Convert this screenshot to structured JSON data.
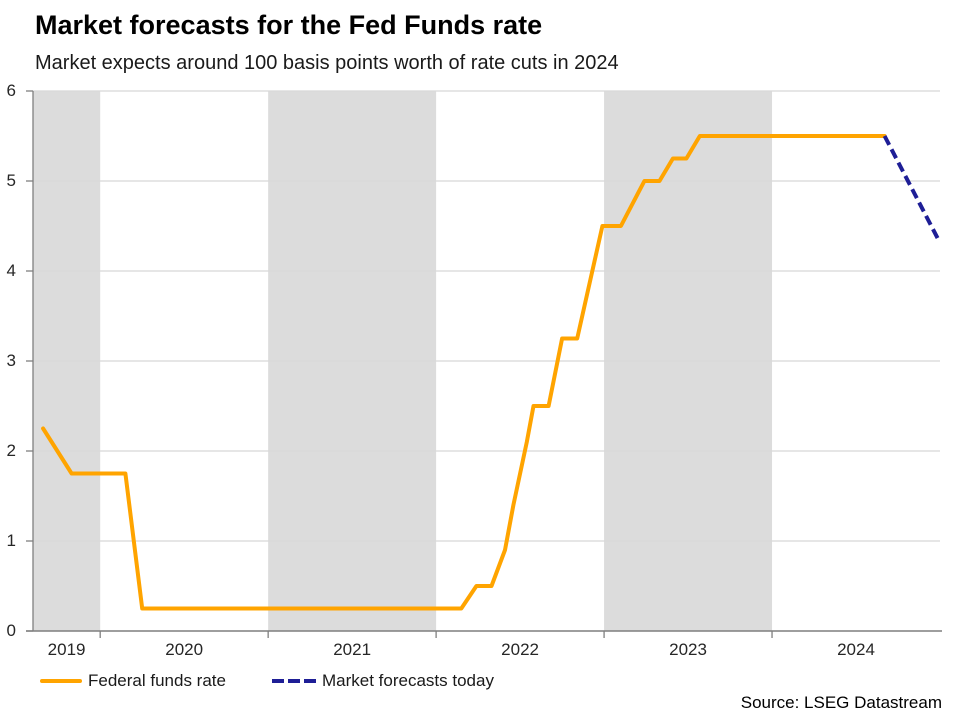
{
  "header": {
    "title": "Market forecasts for the Fed Funds rate",
    "subtitle": "Market expects around 100 basis points worth of rate cuts in 2024"
  },
  "source": "Source: LSEG Datastream",
  "colors": {
    "fed_funds_line": "#FFA400",
    "forecast_line": "#1E1E96",
    "year_band": "#DCDCDC",
    "gridline": "#D8D8D8",
    "axis": "#7F7F7F",
    "tick_text": "#262626"
  },
  "legend": {
    "items": [
      {
        "label": "Federal funds rate",
        "color": "#FFA400",
        "style": "solid"
      },
      {
        "label": "Market forecasts today",
        "color": "#1E1E96",
        "style": "dashed"
      }
    ]
  },
  "chart_data": {
    "type": "line",
    "title": "Market forecasts for the Fed Funds rate",
    "subtitle": "Market expects around 100 basis points worth of rate cuts in 2024",
    "xlabel": "",
    "ylabel": "",
    "x_range": [
      2019.6,
      2025.0
    ],
    "ylim": [
      0,
      6
    ],
    "grid": true,
    "legend_position": "bottom-left",
    "x_tick_marks": [
      2020,
      2021,
      2022,
      2023,
      2024
    ],
    "x_tick_labels": [
      {
        "year": 2019,
        "label": "2019"
      },
      {
        "year": 2020,
        "label": "2020"
      },
      {
        "year": 2021,
        "label": "2021"
      },
      {
        "year": 2022,
        "label": "2022"
      },
      {
        "year": 2023,
        "label": "2023"
      },
      {
        "year": 2024,
        "label": "2024"
      }
    ],
    "y_ticks": [
      0,
      1,
      2,
      3,
      4,
      5,
      6
    ],
    "shaded_year_bands": [
      [
        2019.6,
        2020
      ],
      [
        2021,
        2022
      ],
      [
        2023,
        2024
      ]
    ],
    "series": [
      {
        "name": "Federal funds rate",
        "style": "solid",
        "color": "#FFA400",
        "points": [
          [
            2019.66,
            2.25
          ],
          [
            2019.83,
            1.75
          ],
          [
            2020.15,
            1.75
          ],
          [
            2020.25,
            0.25
          ],
          [
            2022.15,
            0.25
          ],
          [
            2022.24,
            0.5
          ],
          [
            2022.33,
            0.5
          ],
          [
            2022.41,
            0.9
          ],
          [
            2022.46,
            1.4
          ],
          [
            2022.5,
            1.75
          ],
          [
            2022.54,
            2.1
          ],
          [
            2022.58,
            2.5
          ],
          [
            2022.67,
            2.5
          ],
          [
            2022.75,
            3.25
          ],
          [
            2022.84,
            3.25
          ],
          [
            2022.99,
            4.5
          ],
          [
            2023.1,
            4.5
          ],
          [
            2023.24,
            5.0
          ],
          [
            2023.33,
            5.0
          ],
          [
            2023.41,
            5.25
          ],
          [
            2023.49,
            5.25
          ],
          [
            2023.57,
            5.5
          ],
          [
            2024.67,
            5.5
          ]
        ]
      },
      {
        "name": "Market forecasts today",
        "style": "dashed",
        "color": "#1E1E96",
        "points": [
          [
            2024.67,
            5.5
          ],
          [
            2024.99,
            4.35
          ]
        ]
      }
    ]
  }
}
